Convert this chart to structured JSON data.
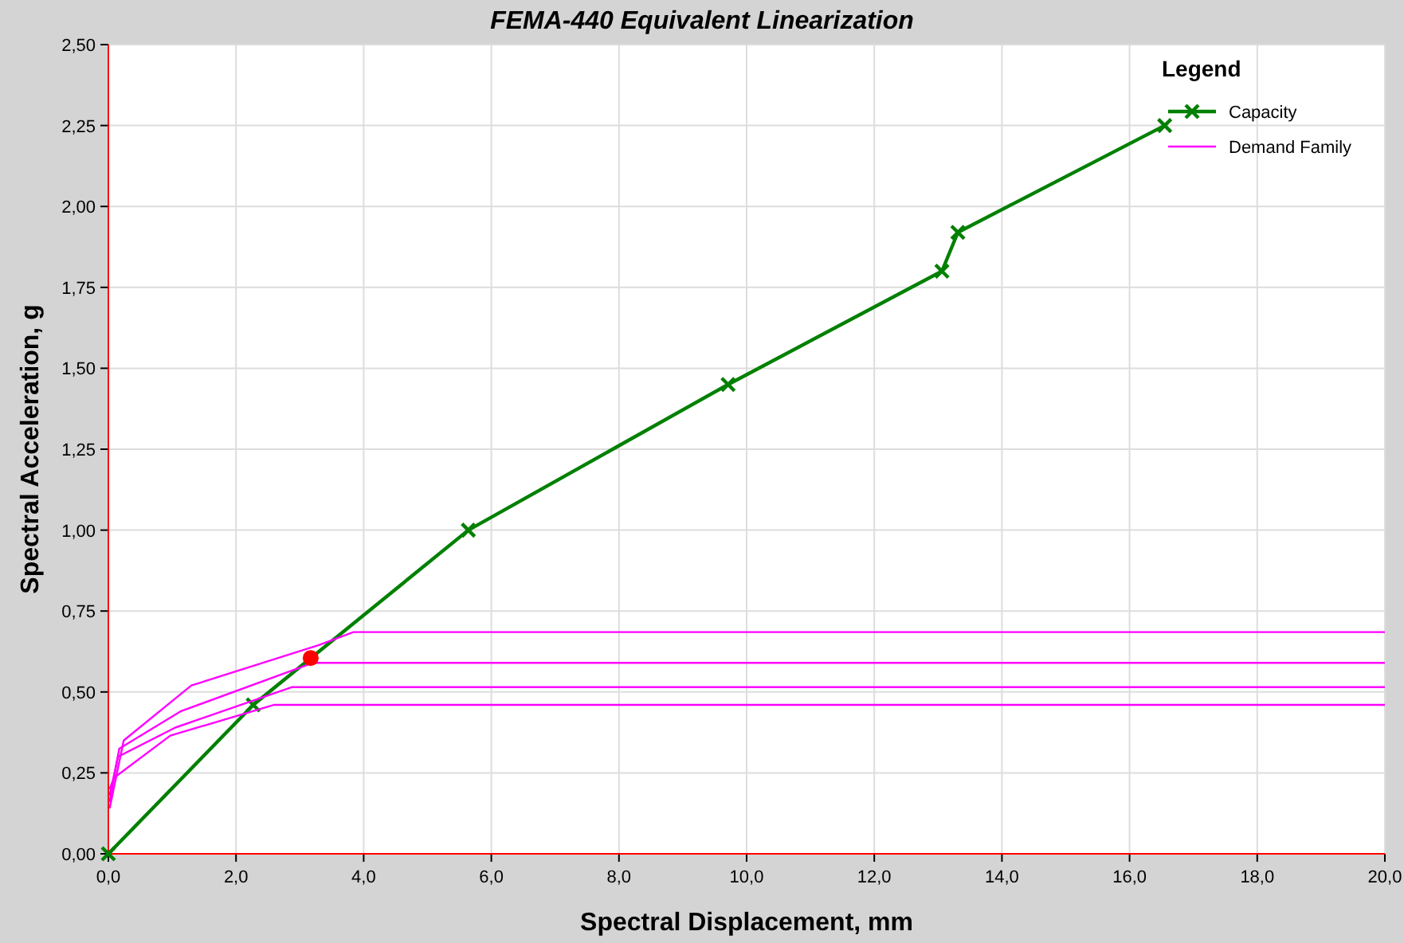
{
  "chart_data": {
    "type": "line",
    "title": "FEMA-440 Equivalent Linearization",
    "xlabel": "Spectral Displacement, mm",
    "ylabel": "Spectral Acceleration, g",
    "legend_title": "Legend",
    "legend": "top right",
    "grid": true,
    "xlim": [
      0,
      20
    ],
    "ylim": [
      0,
      2.5
    ],
    "xticks": [
      {
        "value": 0,
        "label": "0,0"
      },
      {
        "value": 2,
        "label": "2,0"
      },
      {
        "value": 4,
        "label": "4,0"
      },
      {
        "value": 6,
        "label": "6,0"
      },
      {
        "value": 8,
        "label": "8,0"
      },
      {
        "value": 10,
        "label": "10,0"
      },
      {
        "value": 12,
        "label": "12,0"
      },
      {
        "value": 14,
        "label": "14,0"
      },
      {
        "value": 16,
        "label": "16,0"
      },
      {
        "value": 18,
        "label": "18,0"
      },
      {
        "value": 20,
        "label": "20,0"
      }
    ],
    "yticks": [
      {
        "value": 0,
        "label": "0,00"
      },
      {
        "value": 0.25,
        "label": "0,25"
      },
      {
        "value": 0.5,
        "label": "0,50"
      },
      {
        "value": 0.75,
        "label": "0,75"
      },
      {
        "value": 1,
        "label": "1,00"
      },
      {
        "value": 1.25,
        "label": "1,25"
      },
      {
        "value": 1.5,
        "label": "1,50"
      },
      {
        "value": 1.75,
        "label": "1,75"
      },
      {
        "value": 2,
        "label": "2,00"
      },
      {
        "value": 2.25,
        "label": "2,25"
      },
      {
        "value": 2.5,
        "label": "2,50"
      }
    ],
    "series": [
      {
        "name": "Capacity",
        "color": "#008000",
        "marker": "cross",
        "x": [
          0,
          2.27,
          5.64,
          9.71,
          13.06,
          13.31,
          16.55
        ],
        "values": [
          0,
          0.46,
          1.0,
          1.45,
          1.8,
          1.92,
          2.25
        ]
      },
      {
        "name": "Demand Family",
        "color": "#ff00ff",
        "marker": "none",
        "x": [
          0.02,
          0.24,
          1.3,
          3.3,
          3.84,
          20
        ],
        "values": [
          0.14,
          0.35,
          0.52,
          0.645,
          0.685,
          0.685
        ]
      },
      {
        "color": "#ff00ff",
        "marker": "none",
        "x": [
          0.02,
          0.17,
          1.13,
          3.21,
          20
        ],
        "values": [
          0.16,
          0.325,
          0.44,
          0.59,
          0.59
        ]
      },
      {
        "color": "#ff00ff",
        "marker": "none",
        "x": [
          0.02,
          0.15,
          1.05,
          2.88,
          20
        ],
        "values": [
          0.18,
          0.3,
          0.39,
          0.515,
          0.515
        ]
      },
      {
        "color": "#ff00ff",
        "marker": "none",
        "x": [
          0.02,
          0.09,
          0.97,
          2.59,
          20
        ],
        "values": [
          0.2,
          0.235,
          0.365,
          0.46,
          0.46
        ]
      },
      {
        "type": "scatter",
        "color": "#ff0000",
        "marker": "circle",
        "x": [
          3.17
        ],
        "values": [
          0.605
        ]
      }
    ]
  }
}
